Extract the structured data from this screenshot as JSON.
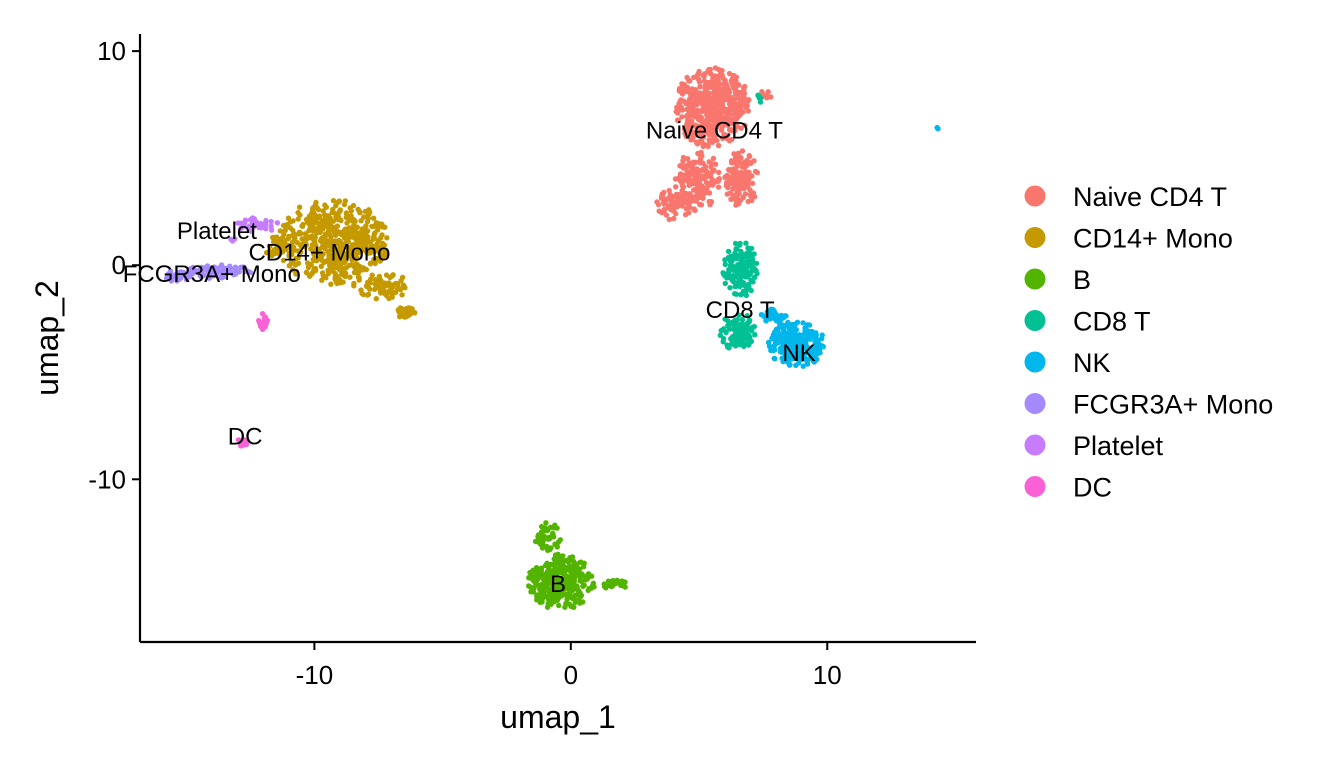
{
  "chart_data": {
    "type": "scatter",
    "xlabel": "umap_1",
    "ylabel": "umap_2",
    "xlim": [
      -16.8,
      15.8
    ],
    "ylim": [
      -17.6,
      10.8
    ],
    "xticks": [
      -10,
      0,
      10
    ],
    "yticks": [
      -10,
      0,
      10
    ],
    "xtick_labels": [
      "-10",
      "0",
      "10"
    ],
    "ytick_labels": [
      "-10",
      "0",
      "10"
    ],
    "grid": false,
    "legend_position": "right",
    "series": [
      {
        "name": "Naive CD4 T",
        "color": "#F8766D",
        "label_pos": [
          5.6,
          6.3
        ],
        "clusters": [
          {
            "cx": 5.5,
            "cy": 7.4,
            "rx": 1.5,
            "ry": 1.9,
            "n": 520
          },
          {
            "cx": 4.9,
            "cy": 4.0,
            "rx": 0.9,
            "ry": 1.5,
            "n": 160
          },
          {
            "cx": 6.6,
            "cy": 4.0,
            "rx": 0.7,
            "ry": 1.4,
            "n": 130
          },
          {
            "cx": 4.0,
            "cy": 2.8,
            "rx": 0.8,
            "ry": 0.7,
            "n": 60
          },
          {
            "cx": 7.6,
            "cy": 8.0,
            "rx": 0.3,
            "ry": 0.2,
            "n": 8
          }
        ]
      },
      {
        "name": "CD14+ Mono",
        "color": "#C49A00",
        "label_pos": [
          -9.8,
          0.6
        ],
        "clusters": [
          {
            "cx": -9.3,
            "cy": 1.1,
            "rx": 2.2,
            "ry": 2.0,
            "n": 560
          },
          {
            "cx": -7.3,
            "cy": -1.0,
            "rx": 1.2,
            "ry": 0.6,
            "n": 70
          },
          {
            "cx": -6.4,
            "cy": -2.2,
            "rx": 0.35,
            "ry": 0.5,
            "n": 25
          },
          {
            "cx": -11.4,
            "cy": 0.8,
            "rx": 0.5,
            "ry": 0.6,
            "n": 30
          }
        ]
      },
      {
        "name": "B",
        "color": "#53B400",
        "label_pos": [
          -0.5,
          -14.9
        ],
        "clusters": [
          {
            "cx": -0.4,
            "cy": -14.8,
            "rx": 1.3,
            "ry": 1.3,
            "n": 330
          },
          {
            "cx": -0.9,
            "cy": -12.7,
            "rx": 0.5,
            "ry": 0.7,
            "n": 45
          },
          {
            "cx": 1.6,
            "cy": -14.9,
            "rx": 0.9,
            "ry": 0.2,
            "n": 25
          }
        ]
      },
      {
        "name": "CD8 T",
        "color": "#00C094",
        "label_pos": [
          6.6,
          -2.1
        ],
        "clusters": [
          {
            "cx": 6.6,
            "cy": -0.2,
            "rx": 0.7,
            "ry": 1.3,
            "n": 150
          },
          {
            "cx": 6.5,
            "cy": -3.1,
            "rx": 0.7,
            "ry": 0.9,
            "n": 120
          },
          {
            "cx": 7.4,
            "cy": 7.8,
            "rx": 0.2,
            "ry": 0.2,
            "n": 5
          }
        ]
      },
      {
        "name": "NK",
        "color": "#00B6EB",
        "label_pos": [
          8.9,
          -4.1
        ],
        "clusters": [
          {
            "cx": 8.8,
            "cy": -3.7,
            "rx": 1.1,
            "ry": 1.1,
            "n": 250
          },
          {
            "cx": 7.9,
            "cy": -2.4,
            "rx": 0.5,
            "ry": 0.4,
            "n": 35
          },
          {
            "cx": 14.3,
            "cy": 6.4,
            "rx": 0.05,
            "ry": 0.05,
            "n": 2
          }
        ]
      },
      {
        "name": "FCGR3A+ Mono",
        "color": "#A58AFF",
        "label_pos": [
          -14.0,
          -0.4
        ],
        "clusters": [
          {
            "cx": -13.7,
            "cy": -0.3,
            "rx": 1.3,
            "ry": 0.35,
            "n": 90
          },
          {
            "cx": -15.3,
            "cy": -0.5,
            "rx": 0.5,
            "ry": 0.3,
            "n": 30
          }
        ]
      },
      {
        "name": "Platelet",
        "color": "#C77CFF",
        "label_pos": [
          -13.8,
          1.6
        ],
        "clusters": [
          {
            "cx": -12.2,
            "cy": 1.9,
            "rx": 0.8,
            "ry": 0.35,
            "n": 40
          },
          {
            "cx": -13.2,
            "cy": 1.2,
            "rx": 0.1,
            "ry": 0.1,
            "n": 3
          }
        ]
      },
      {
        "name": "DC",
        "color": "#FB61D7",
        "label_pos": [
          -12.7,
          -8.0
        ],
        "clusters": [
          {
            "cx": -12.0,
            "cy": -2.7,
            "rx": 0.18,
            "ry": 0.5,
            "n": 25
          },
          {
            "cx": -12.8,
            "cy": -8.3,
            "rx": 0.2,
            "ry": 0.3,
            "n": 12
          }
        ]
      }
    ]
  }
}
